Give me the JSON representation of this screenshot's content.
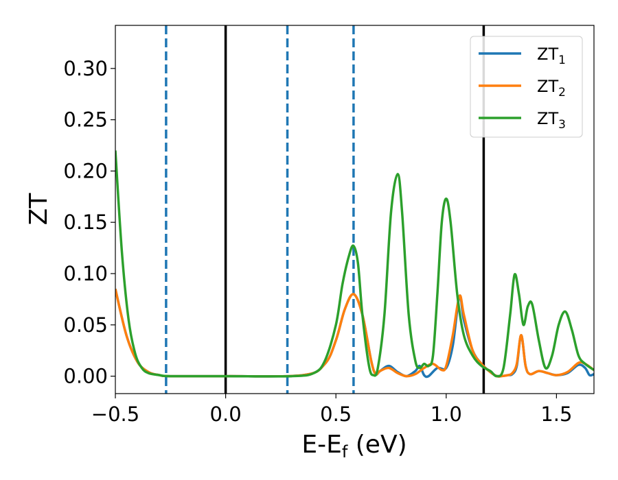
{
  "chart_data": {
    "type": "line",
    "xlabel": "E-E",
    "xlabel_sub": "f",
    "xlabel_unit": " (eV)",
    "ylabel": "ZT",
    "xlim": [
      -0.5,
      1.67
    ],
    "ylim": [
      -0.017,
      0.342
    ],
    "xticks": [
      -0.5,
      0.0,
      0.5,
      1.0,
      1.5
    ],
    "xtick_labels": [
      "−0.5",
      "0.0",
      "0.5",
      "1.0",
      "1.5"
    ],
    "yticks": [
      0.0,
      0.05,
      0.1,
      0.15,
      0.2,
      0.25,
      0.3
    ],
    "ytick_labels": [
      "0.00",
      "0.05",
      "0.10",
      "0.15",
      "0.20",
      "0.25",
      "0.30"
    ],
    "grid": false,
    "legend_placement": "top-right",
    "vlines": [
      {
        "x": 0.0,
        "style": "solid",
        "color": "#000000"
      },
      {
        "x": 1.17,
        "style": "solid",
        "color": "#000000"
      },
      {
        "x": -0.27,
        "style": "dashed",
        "color": "#1f77b4"
      },
      {
        "x": 0.28,
        "style": "dashed",
        "color": "#1f77b4"
      },
      {
        "x": 0.58,
        "style": "dashed",
        "color": "#1f77b4"
      }
    ],
    "series": [
      {
        "name": "ZT",
        "name_sub": "1",
        "color": "#1f77b4",
        "x": [
          -0.5,
          -0.45,
          -0.4,
          -0.35,
          -0.3,
          -0.25,
          0.0,
          0.35,
          0.45,
          0.5,
          0.54,
          0.58,
          0.62,
          0.66,
          0.68,
          0.7,
          0.74,
          0.78,
          0.82,
          0.86,
          0.88,
          0.9,
          0.92,
          0.96,
          1.0,
          1.03,
          1.06,
          1.08,
          1.12,
          1.16,
          1.2,
          1.23,
          1.25,
          1.28,
          1.3,
          1.32,
          1.34,
          1.36,
          1.38,
          1.42,
          1.46,
          1.5,
          1.55,
          1.6,
          1.63,
          1.65,
          1.67
        ],
        "y": [
          0.085,
          0.04,
          0.014,
          0.004,
          0.001,
          0.0,
          0.0,
          0.001,
          0.012,
          0.035,
          0.065,
          0.08,
          0.06,
          0.015,
          0.002,
          0.005,
          0.01,
          0.004,
          0.0,
          0.005,
          0.01,
          0.001,
          0.0,
          0.008,
          0.008,
          0.03,
          0.078,
          0.055,
          0.025,
          0.012,
          0.004,
          0.0,
          0.0,
          0.001,
          0.002,
          0.01,
          0.04,
          0.01,
          0.002,
          0.005,
          0.003,
          0.001,
          0.003,
          0.011,
          0.008,
          0.001,
          0.002
        ]
      },
      {
        "name": "ZT",
        "name_sub": "2",
        "color": "#ff7f0e",
        "x": [
          -0.5,
          -0.45,
          -0.4,
          -0.35,
          -0.3,
          -0.25,
          0.0,
          0.35,
          0.45,
          0.5,
          0.54,
          0.58,
          0.62,
          0.66,
          0.68,
          0.7,
          0.74,
          0.78,
          0.82,
          0.86,
          0.9,
          0.94,
          0.98,
          1.0,
          1.03,
          1.06,
          1.08,
          1.12,
          1.16,
          1.2,
          1.23,
          1.25,
          1.28,
          1.3,
          1.32,
          1.34,
          1.36,
          1.38,
          1.42,
          1.46,
          1.5,
          1.55,
          1.6,
          1.63,
          1.67
        ],
        "y": [
          0.085,
          0.04,
          0.014,
          0.004,
          0.001,
          0.0,
          0.0,
          0.001,
          0.012,
          0.035,
          0.065,
          0.08,
          0.06,
          0.015,
          0.002,
          0.005,
          0.008,
          0.003,
          0.0,
          0.002,
          0.008,
          0.012,
          0.006,
          0.01,
          0.04,
          0.078,
          0.06,
          0.025,
          0.012,
          0.004,
          0.0,
          0.0,
          0.001,
          0.003,
          0.012,
          0.04,
          0.01,
          0.002,
          0.005,
          0.003,
          0.001,
          0.004,
          0.013,
          0.012,
          0.006
        ]
      },
      {
        "name": "ZT",
        "name_sub": "3",
        "color": "#2ca02c",
        "x": [
          -0.5,
          -0.47,
          -0.44,
          -0.41,
          -0.38,
          -0.35,
          -0.3,
          -0.25,
          0.0,
          0.3,
          0.4,
          0.45,
          0.5,
          0.53,
          0.56,
          0.58,
          0.6,
          0.62,
          0.65,
          0.67,
          0.69,
          0.72,
          0.75,
          0.78,
          0.8,
          0.83,
          0.86,
          0.88,
          0.9,
          0.92,
          0.94,
          0.96,
          0.98,
          1.0,
          1.02,
          1.05,
          1.08,
          1.12,
          1.16,
          1.2,
          1.23,
          1.26,
          1.29,
          1.31,
          1.33,
          1.35,
          1.37,
          1.39,
          1.42,
          1.45,
          1.48,
          1.51,
          1.54,
          1.57,
          1.6,
          1.63,
          1.67
        ],
        "y": [
          0.22,
          0.12,
          0.055,
          0.022,
          0.008,
          0.003,
          0.001,
          0.0,
          0.0,
          0.0,
          0.003,
          0.015,
          0.05,
          0.09,
          0.118,
          0.127,
          0.11,
          0.06,
          0.01,
          0.001,
          0.008,
          0.06,
          0.16,
          0.197,
          0.16,
          0.06,
          0.015,
          0.008,
          0.012,
          0.01,
          0.02,
          0.08,
          0.15,
          0.173,
          0.15,
          0.08,
          0.04,
          0.02,
          0.01,
          0.005,
          0.0,
          0.008,
          0.06,
          0.099,
          0.08,
          0.05,
          0.068,
          0.07,
          0.035,
          0.008,
          0.02,
          0.05,
          0.063,
          0.045,
          0.02,
          0.012,
          0.006
        ]
      }
    ]
  }
}
